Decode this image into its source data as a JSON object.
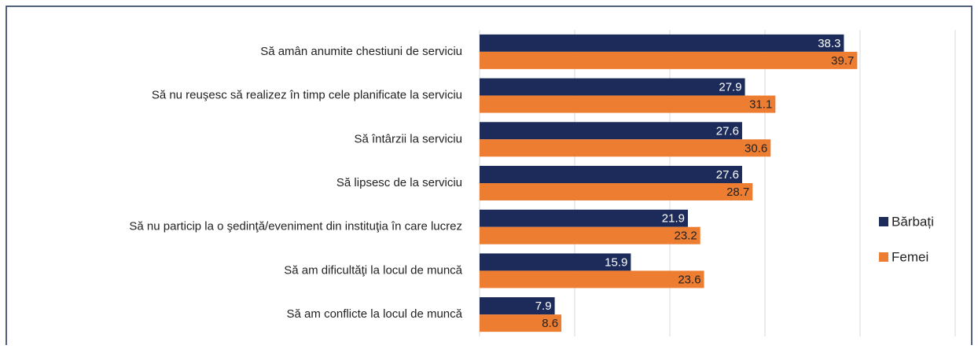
{
  "chart_data": {
    "type": "barh",
    "categories": [
      "Să amân anumite chestiuni de serviciu",
      "Să nu reuşesc să realizez în timp cele planificate la serviciu",
      "Să întârzii la serviciu",
      "Să lipsesc de la serviciu",
      "Să nu particip la o şedinţă/eveniment din instituţia în care lucrez",
      "Să am dificultăţi la locul de muncă",
      "Să am conflicte la locul de muncă"
    ],
    "series": [
      {
        "name": "Bărbați",
        "color": "#1c2b5a",
        "values": [
          38.3,
          27.9,
          27.6,
          27.6,
          21.9,
          15.9,
          7.9
        ]
      },
      {
        "name": "Femei",
        "color": "#ed7d31",
        "values": [
          39.7,
          31.1,
          30.6,
          28.7,
          23.2,
          23.6,
          8.6
        ]
      }
    ],
    "xlim": [
      0,
      50
    ],
    "xticks": [
      0,
      10,
      20,
      30,
      40,
      50
    ],
    "grid": true,
    "legend": "right"
  }
}
